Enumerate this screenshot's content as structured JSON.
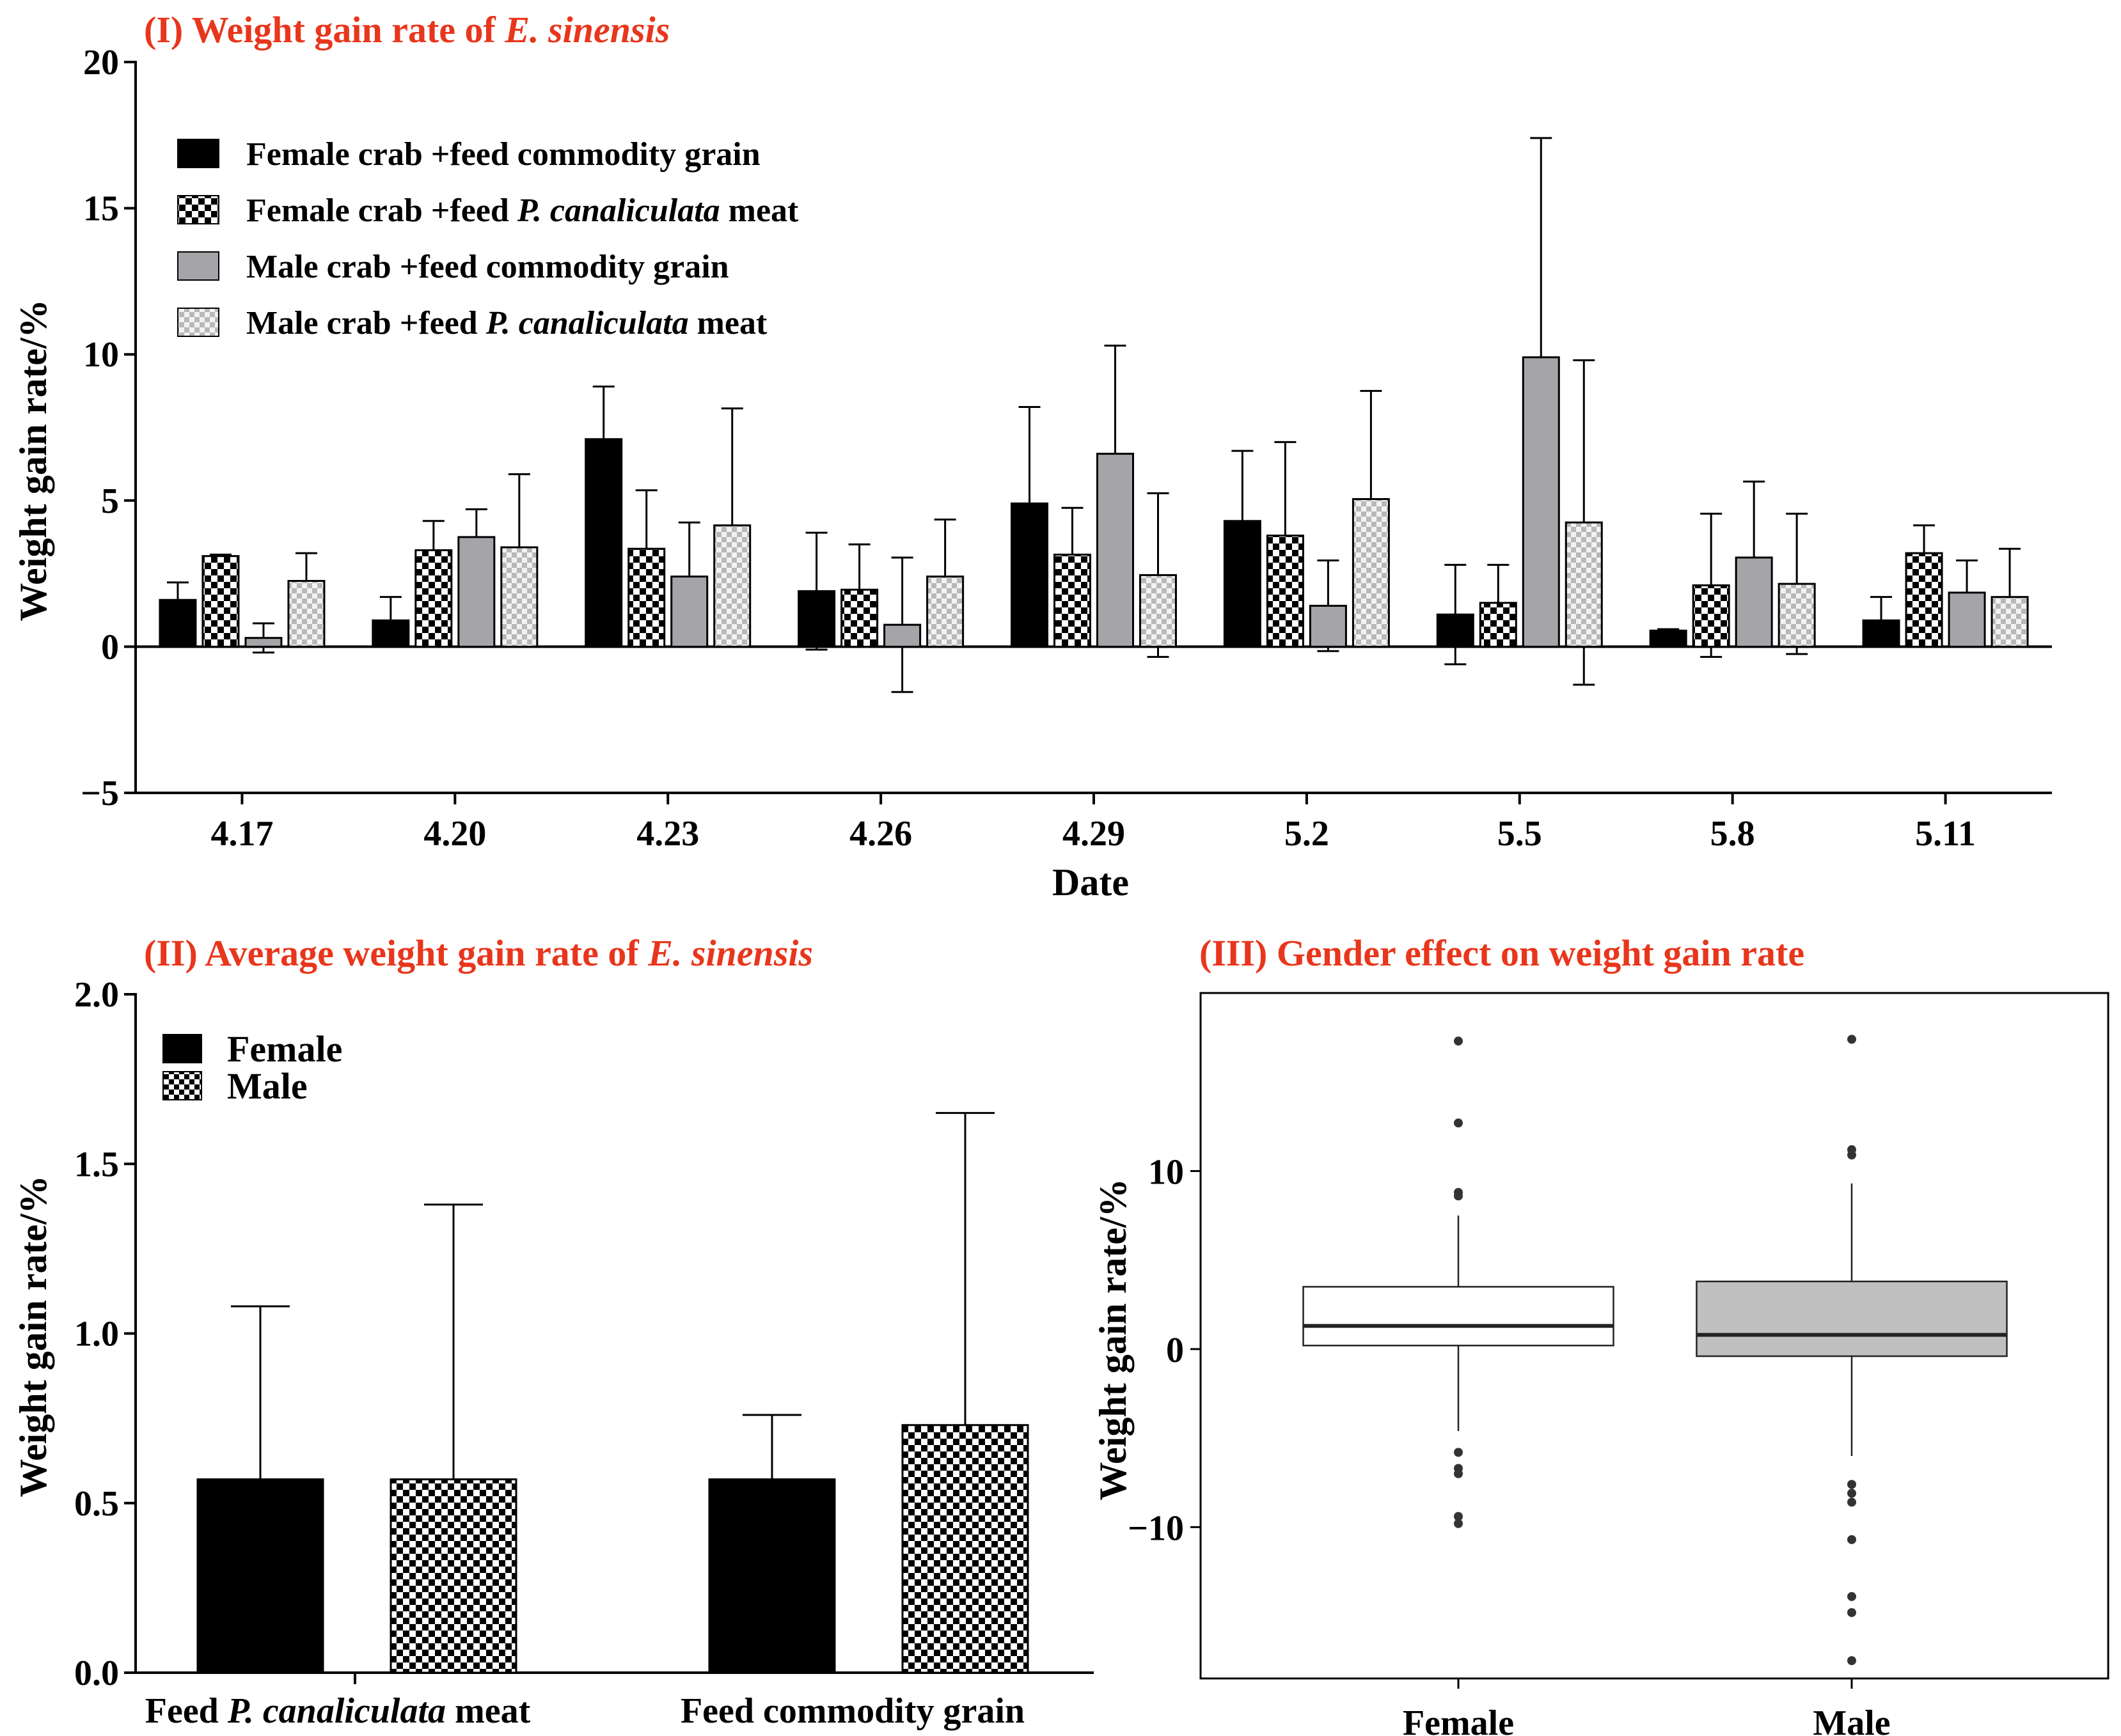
{
  "chart_data": [
    {
      "id": "panel1",
      "type": "bar",
      "title_prefix": "(I) Weight gain rate of ",
      "title_italic": "E. sinensis",
      "xlabel": "Date",
      "ylabel": "Weight gain rate/%",
      "ylim": [
        -5,
        20
      ],
      "yticks": [
        -5,
        0,
        5,
        10,
        15,
        20
      ],
      "ytick_labels": [
        "−5",
        "0",
        "5",
        "10",
        "15",
        "20"
      ],
      "categories": [
        "4.17",
        "4.20",
        "4.23",
        "4.26",
        "4.29",
        "5.2",
        "5.5",
        "5.8",
        "5.11"
      ],
      "series": [
        {
          "name": "Female crab +feed commodity grain",
          "label_parts": [
            "Female crab +feed commodity grain",
            "",
            ""
          ],
          "pattern": "black",
          "values": [
            1.6,
            0.9,
            7.1,
            1.9,
            4.9,
            4.3,
            1.1,
            0.55,
            0.9
          ],
          "errors": [
            0.6,
            0.8,
            1.8,
            2.0,
            3.3,
            2.4,
            1.7,
            0.05,
            0.8
          ]
        },
        {
          "name": "Female crab +feed P. canaliculata meat",
          "label_parts": [
            "Female crab +feed ",
            "P. canaliculata",
            " meat"
          ],
          "pattern": "checker",
          "values": [
            3.1,
            3.3,
            3.35,
            1.95,
            3.15,
            3.8,
            1.5,
            2.1,
            3.2
          ],
          "errors": [
            0.05,
            1.0,
            2.0,
            1.55,
            1.6,
            3.2,
            1.3,
            2.45,
            0.95
          ]
        },
        {
          "name": "Male crab +feed commodity grain",
          "label_parts": [
            "Male crab +feed commodity grain",
            "",
            ""
          ],
          "pattern": "gray",
          "values": [
            0.3,
            3.75,
            2.4,
            0.75,
            6.6,
            1.4,
            9.9,
            3.05,
            1.85
          ],
          "errors": [
            0.5,
            0.95,
            1.85,
            2.3,
            3.7,
            1.55,
            7.5,
            2.6,
            1.1
          ]
        },
        {
          "name": "Male crab +feed P. canaliculata meat",
          "label_parts": [
            "Male crab +feed ",
            "P. canaliculata",
            " meat"
          ],
          "pattern": "lightchecker",
          "values": [
            2.25,
            3.4,
            4.15,
            2.4,
            2.45,
            5.05,
            4.25,
            2.15,
            1.7
          ],
          "errors": [
            0.95,
            2.5,
            4.0,
            1.95,
            2.8,
            3.7,
            5.55,
            2.4,
            1.65
          ]
        }
      ]
    },
    {
      "id": "panel2",
      "type": "bar",
      "title_prefix": "(II) Average weight gain rate of ",
      "title_italic": "E. sinensis",
      "ylabel": "Weight gain rate/%",
      "ylim": [
        0,
        2.0
      ],
      "yticks": [
        0,
        0.5,
        1.0,
        1.5,
        2.0
      ],
      "ytick_labels": [
        "0.0",
        "0.5",
        "1.0",
        "1.5",
        "2.0"
      ],
      "categories": [
        {
          "parts": [
            "Feed ",
            "P. canaliculata",
            " meat"
          ]
        },
        {
          "parts": [
            "Feed commodity grain",
            "",
            ""
          ]
        }
      ],
      "series": [
        {
          "name": "Female",
          "pattern": "black",
          "values": [
            0.57,
            0.57
          ],
          "errors": [
            0.51,
            0.19
          ]
        },
        {
          "name": "Male",
          "pattern": "checker",
          "values": [
            0.57,
            0.73
          ],
          "errors": [
            0.81,
            0.92
          ]
        }
      ]
    },
    {
      "id": "panel3",
      "type": "box",
      "title": "(III) Gender effect on weight gain rate",
      "ylabel": "Weight gain rate/%",
      "ylim": [
        -18.5,
        20
      ],
      "yticks": [
        -10,
        0,
        10
      ],
      "ytick_labels": [
        "−10",
        "0",
        "10"
      ],
      "groups": [
        {
          "name": "Female",
          "fill": "#ffffff",
          "q1": 0.2,
          "median": 1.3,
          "q3": 3.5,
          "whisker_low": -4.6,
          "whisker_high": 7.5,
          "outliers": [
            17.3,
            12.7,
            8.8,
            8.6,
            -5.8,
            -6.7,
            -7.0,
            -9.4,
            -9.8
          ]
        },
        {
          "name": "Male",
          "fill": "#c0c0c0",
          "q1": -0.4,
          "median": 0.8,
          "q3": 3.8,
          "whisker_low": -6.0,
          "whisker_high": 9.3,
          "outliers": [
            17.4,
            11.2,
            10.9,
            -7.6,
            -8.1,
            -8.6,
            -10.7,
            -13.9,
            -14.8,
            -17.5
          ]
        }
      ]
    }
  ]
}
